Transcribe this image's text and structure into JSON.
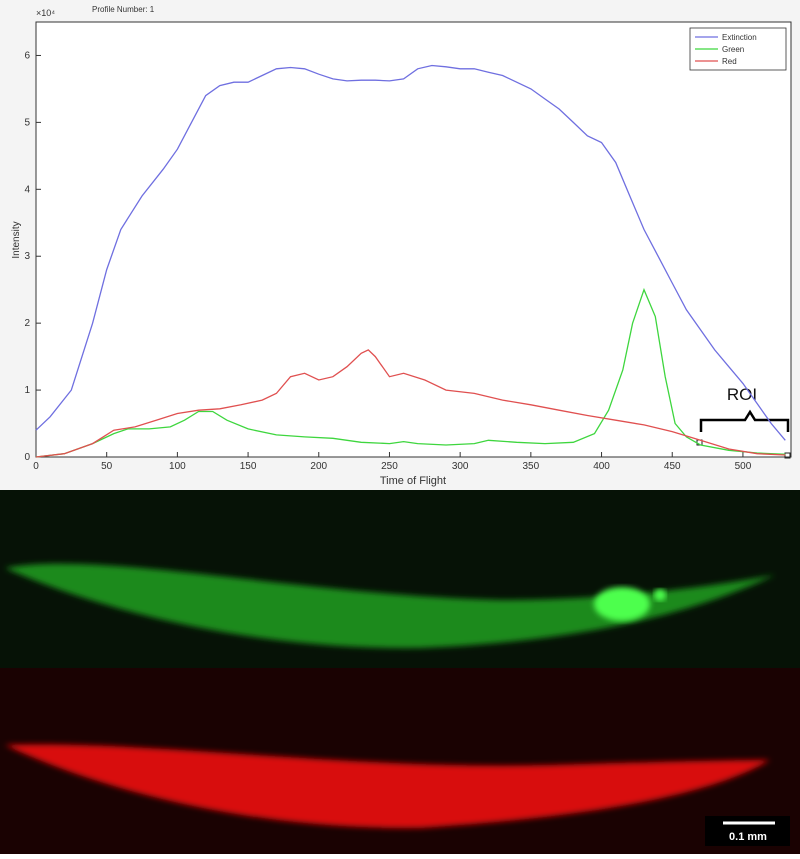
{
  "chart_data": {
    "type": "line",
    "title": "Profile Number: 1",
    "x_label": "Time of Flight",
    "y_label": "Intensity",
    "y_multiplier": "×10⁴",
    "xlim": [
      0,
      534
    ],
    "ylim": [
      0,
      6.5
    ],
    "xticks": [
      0,
      50,
      100,
      150,
      200,
      250,
      300,
      350,
      400,
      450,
      500
    ],
    "yticks": [
      0,
      1,
      2,
      3,
      4,
      5,
      6
    ],
    "legend_position": "upper right",
    "annotation": "ROI",
    "series": [
      {
        "name": "Extinction",
        "color": "#6f6fe0",
        "x": [
          0,
          10,
          25,
          40,
          50,
          60,
          75,
          90,
          100,
          110,
          120,
          130,
          140,
          150,
          160,
          170,
          180,
          190,
          200,
          210,
          220,
          230,
          240,
          250,
          260,
          270,
          280,
          290,
          300,
          310,
          320,
          330,
          340,
          350,
          360,
          370,
          380,
          390,
          400,
          410,
          420,
          430,
          440,
          450,
          460,
          470,
          480,
          490,
          500,
          510,
          520,
          530
        ],
        "values": [
          0.4,
          0.6,
          1.0,
          2.0,
          2.8,
          3.4,
          3.9,
          4.3,
          4.6,
          5.0,
          5.4,
          5.55,
          5.6,
          5.6,
          5.7,
          5.8,
          5.82,
          5.8,
          5.72,
          5.65,
          5.62,
          5.63,
          5.63,
          5.62,
          5.65,
          5.8,
          5.85,
          5.83,
          5.8,
          5.8,
          5.75,
          5.7,
          5.6,
          5.5,
          5.35,
          5.2,
          5.0,
          4.8,
          4.7,
          4.4,
          3.9,
          3.4,
          3.0,
          2.6,
          2.2,
          1.9,
          1.6,
          1.35,
          1.1,
          0.8,
          0.5,
          0.25
        ]
      },
      {
        "name": "Green",
        "color": "#3ed63e",
        "x": [
          0,
          20,
          40,
          55,
          65,
          80,
          95,
          105,
          115,
          125,
          135,
          150,
          170,
          190,
          210,
          230,
          250,
          260,
          270,
          290,
          310,
          320,
          340,
          360,
          380,
          395,
          405,
          415,
          422,
          430,
          438,
          445,
          452,
          460,
          470,
          490,
          510,
          530
        ],
        "values": [
          0,
          0.05,
          0.2,
          0.35,
          0.42,
          0.42,
          0.45,
          0.55,
          0.68,
          0.68,
          0.55,
          0.42,
          0.33,
          0.3,
          0.28,
          0.22,
          0.2,
          0.23,
          0.2,
          0.18,
          0.2,
          0.25,
          0.22,
          0.2,
          0.22,
          0.35,
          0.7,
          1.3,
          2.0,
          2.5,
          2.1,
          1.2,
          0.5,
          0.3,
          0.18,
          0.1,
          0.06,
          0.04
        ]
      },
      {
        "name": "Red",
        "color": "#e05050",
        "x": [
          0,
          20,
          40,
          55,
          70,
          85,
          100,
          115,
          130,
          145,
          160,
          170,
          180,
          190,
          200,
          210,
          220,
          230,
          235,
          240,
          250,
          260,
          275,
          290,
          310,
          330,
          350,
          370,
          390,
          410,
          430,
          450,
          470,
          490,
          510,
          530
        ],
        "values": [
          0,
          0.05,
          0.2,
          0.4,
          0.45,
          0.55,
          0.65,
          0.7,
          0.72,
          0.78,
          0.85,
          0.95,
          1.2,
          1.25,
          1.15,
          1.2,
          1.35,
          1.55,
          1.6,
          1.5,
          1.2,
          1.25,
          1.15,
          1.0,
          0.95,
          0.85,
          0.78,
          0.7,
          0.62,
          0.55,
          0.48,
          0.38,
          0.25,
          0.12,
          0.05,
          0.03
        ]
      }
    ]
  },
  "scale_bar": "0.1 mm"
}
